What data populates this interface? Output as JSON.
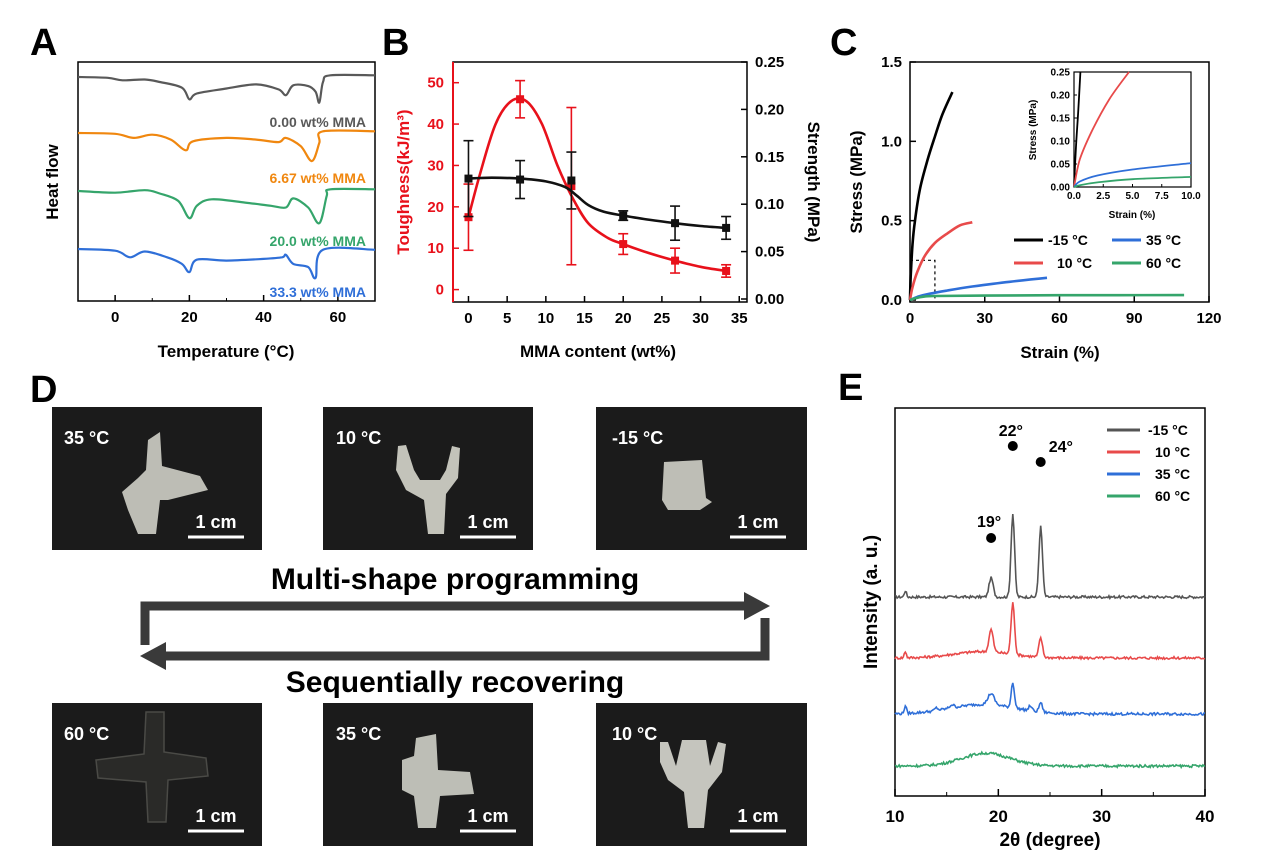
{
  "panel_labels": {
    "a": "A",
    "b": "B",
    "c": "C",
    "d": "D",
    "e": "E"
  },
  "chart_data": [
    {
      "id": "A",
      "type": "line",
      "xlabel": "Temperature (°C)",
      "ylabel": "Heat flow",
      "xlim": [
        -10,
        70
      ],
      "xticks": [
        0,
        20,
        40,
        60
      ],
      "series": [
        {
          "name": "0.00 wt% MMA",
          "color": "#595959",
          "offset": 0,
          "points": [
            [
              -10,
              0.0
            ],
            [
              -2,
              0.5
            ],
            [
              2,
              2.0
            ],
            [
              8,
              1.5
            ],
            [
              12,
              3.0
            ],
            [
              18,
              6.5
            ],
            [
              20,
              13.5
            ],
            [
              22,
              10.0
            ],
            [
              30,
              7.0
            ],
            [
              38,
              4.5
            ],
            [
              44,
              7.5
            ],
            [
              46,
              11.0
            ],
            [
              48,
              5.0
            ],
            [
              52,
              5.5
            ],
            [
              54,
              9.0
            ],
            [
              55,
              15.5
            ],
            [
              56,
              3.0
            ],
            [
              58,
              -1.0
            ],
            [
              70,
              -1.0
            ]
          ]
        },
        {
          "name": "6.67 wt% MMA",
          "color": "#f0870f",
          "offset": 1,
          "points": [
            [
              -10,
              0.0
            ],
            [
              0,
              0.5
            ],
            [
              5,
              3.0
            ],
            [
              10,
              1.0
            ],
            [
              15,
              4.0
            ],
            [
              19,
              10.5
            ],
            [
              21,
              5.0
            ],
            [
              30,
              3.0
            ],
            [
              38,
              4.0
            ],
            [
              44,
              5.5
            ],
            [
              46,
              3.0
            ],
            [
              50,
              8.0
            ],
            [
              53,
              17.0
            ],
            [
              55,
              6.0
            ],
            [
              56,
              -1.0
            ],
            [
              70,
              -1.0
            ]
          ]
        },
        {
          "name": "20.0 wt% MMA",
          "color": "#35a56b",
          "offset": 2,
          "points": [
            [
              -10,
              0.0
            ],
            [
              0,
              1.0
            ],
            [
              8,
              -0.5
            ],
            [
              12,
              1.5
            ],
            [
              17,
              6.0
            ],
            [
              20,
              16.5
            ],
            [
              22,
              9.0
            ],
            [
              26,
              5.0
            ],
            [
              35,
              7.0
            ],
            [
              42,
              9.0
            ],
            [
              46,
              10.0
            ],
            [
              48,
              4.5
            ],
            [
              52,
              10.0
            ],
            [
              55,
              19.5
            ],
            [
              57,
              3.0
            ],
            [
              58,
              -1.0
            ],
            [
              70,
              -1.0
            ]
          ]
        },
        {
          "name": "33.3 wt% MMA",
          "color": "#2f6fd8",
          "offset": 3,
          "points": [
            [
              -10,
              0.0
            ],
            [
              0,
              1.0
            ],
            [
              4,
              5.0
            ],
            [
              8,
              1.5
            ],
            [
              14,
              5.0
            ],
            [
              18,
              9.0
            ],
            [
              20,
              14.0
            ],
            [
              22,
              6.5
            ],
            [
              30,
              7.0
            ],
            [
              40,
              6.0
            ],
            [
              45,
              5.0
            ],
            [
              46,
              3.5
            ],
            [
              48,
              9.0
            ],
            [
              52,
              11.0
            ],
            [
              54,
              17.5
            ],
            [
              56,
              0.5
            ],
            [
              70,
              0.5
            ]
          ]
        }
      ]
    },
    {
      "id": "B",
      "type": "line",
      "xlabel": "MMA content (wt%)",
      "ylabel": "Toughness(kJ/m³)",
      "y2label": "Strength (MPa)",
      "xlim": [
        -2,
        36
      ],
      "ylim": [
        -3,
        55
      ],
      "y2lim": [
        0,
        0.25
      ],
      "xticks": [
        0,
        5,
        10,
        15,
        20,
        25,
        30,
        35
      ],
      "yticks": [
        0,
        10,
        20,
        30,
        40,
        50
      ],
      "y2ticks": [
        0.0,
        0.05,
        0.1,
        0.15,
        0.2,
        0.25
      ],
      "series": [
        {
          "name": "Toughness",
          "axis": "left",
          "color": "#e8111b",
          "x": [
            0,
            6.67,
            13.3,
            20,
            26.7,
            33.3
          ],
          "values": [
            17.5,
            46,
            25,
            11,
            7,
            4.5
          ],
          "err": [
            8,
            4.5,
            19,
            2.5,
            3,
            1.5
          ],
          "fit": [
            [
              0,
              17.5
            ],
            [
              1.5,
              28
            ],
            [
              3.5,
              40
            ],
            [
              5.5,
              45.5
            ],
            [
              7.5,
              45.5
            ],
            [
              9.5,
              40
            ],
            [
              11.5,
              30
            ],
            [
              13.5,
              22
            ],
            [
              15.5,
              16
            ],
            [
              18,
              12.5
            ],
            [
              20,
              11
            ],
            [
              23,
              9
            ],
            [
              26.7,
              7
            ],
            [
              30,
              5.5
            ],
            [
              33.3,
              4.5
            ]
          ]
        },
        {
          "name": "Strength",
          "axis": "right",
          "color": "#111111",
          "x": [
            0,
            6.67,
            13.3,
            20,
            26.7,
            33.3
          ],
          "values": [
            0.127,
            0.126,
            0.125,
            0.088,
            0.08,
            0.075
          ],
          "err": [
            0.04,
            0.02,
            0.03,
            0.005,
            0.018,
            0.012
          ],
          "fit": [
            [
              0,
              0.127
            ],
            [
              3,
              0.128
            ],
            [
              6.67,
              0.127
            ],
            [
              10,
              0.124
            ],
            [
              12.5,
              0.118
            ],
            [
              14,
              0.109
            ],
            [
              15.5,
              0.099
            ],
            [
              17.5,
              0.092
            ],
            [
              20,
              0.088
            ],
            [
              23,
              0.084
            ],
            [
              26.7,
              0.08
            ],
            [
              30,
              0.077
            ],
            [
              33.3,
              0.075
            ]
          ]
        }
      ]
    },
    {
      "id": "C",
      "type": "line",
      "xlabel": "Strain (%)",
      "ylabel": "Stress (MPa)",
      "xlim": [
        0,
        120
      ],
      "ylim": [
        0,
        1.5
      ],
      "xticks": [
        0,
        30,
        60,
        90,
        120
      ],
      "yticks": [
        0.0,
        0.5,
        1.0,
        1.5
      ],
      "legend": "bottom-right",
      "series": [
        {
          "name": "-15 °C",
          "color": "#000000",
          "points": [
            [
              0,
              0
            ],
            [
              0.3,
              0.15
            ],
            [
              1,
              0.35
            ],
            [
              2,
              0.5
            ],
            [
              4,
              0.7
            ],
            [
              7,
              0.88
            ],
            [
              10,
              1.03
            ],
            [
              13,
              1.17
            ],
            [
              17,
              1.31
            ]
          ]
        },
        {
          "name": "10 °C",
          "color": "#e84a4a",
          "points": [
            [
              0,
              0
            ],
            [
              1,
              0.08
            ],
            [
              3,
              0.18
            ],
            [
              6,
              0.28
            ],
            [
              10,
              0.36
            ],
            [
              15,
              0.42
            ],
            [
              20,
              0.47
            ],
            [
              25,
              0.49
            ]
          ]
        },
        {
          "name": "35 °C",
          "color": "#2f6fd8",
          "points": [
            [
              0,
              0
            ],
            [
              3,
              0.02
            ],
            [
              8,
              0.04
            ],
            [
              15,
              0.06
            ],
            [
              25,
              0.085
            ],
            [
              40,
              0.115
            ],
            [
              55,
              0.14
            ]
          ]
        },
        {
          "name": "60 °C",
          "color": "#35a56b",
          "points": [
            [
              0,
              0
            ],
            [
              2,
              0.01
            ],
            [
              5,
              0.02
            ],
            [
              10,
              0.025
            ],
            [
              30,
              0.028
            ],
            [
              60,
              0.03
            ],
            [
              110,
              0.031
            ]
          ]
        }
      ],
      "inset": {
        "xlabel": "Strain (%)",
        "ylabel": "Stress (MPa)",
        "xlim": [
          0,
          10
        ],
        "ylim": [
          0,
          0.25
        ],
        "xticks": [
          0.0,
          2.5,
          5.0,
          7.5,
          10.0
        ],
        "yticks": [
          0.0,
          0.05,
          0.1,
          0.15,
          0.2,
          0.25
        ],
        "series": [
          {
            "name": "-15 °C",
            "color": "#000000",
            "points": [
              [
                0,
                0
              ],
              [
                0.15,
                0.08
              ],
              [
                0.35,
                0.16
              ],
              [
                0.55,
                0.25
              ]
            ]
          },
          {
            "name": "10 °C",
            "color": "#e84a4a",
            "points": [
              [
                0,
                0
              ],
              [
                0.5,
                0.06
              ],
              [
                1.5,
                0.12
              ],
              [
                3,
                0.19
              ],
              [
                4.7,
                0.25
              ]
            ]
          },
          {
            "name": "35 °C",
            "color": "#2f6fd8",
            "points": [
              [
                0,
                0
              ],
              [
                0.5,
                0.012
              ],
              [
                2,
                0.025
              ],
              [
                5,
                0.038
              ],
              [
                10,
                0.052
              ]
            ]
          },
          {
            "name": "60 °C",
            "color": "#35a56b",
            "points": [
              [
                0,
                0
              ],
              [
                0.5,
                0.004
              ],
              [
                2,
                0.01
              ],
              [
                5,
                0.017
              ],
              [
                10,
                0.022
              ]
            ]
          }
        ]
      }
    },
    {
      "id": "E",
      "type": "line",
      "xlabel": "2θ (degree)",
      "ylabel": "Intensity (a. u.)",
      "xlim": [
        10,
        40
      ],
      "xticks": [
        10,
        20,
        30,
        40
      ],
      "legend": "top-right",
      "peak_labels": [
        {
          "text": "19°",
          "x": 19.3
        },
        {
          "text": "22°",
          "x": 21.4
        },
        {
          "text": "24°",
          "x": 24.1
        }
      ],
      "series": [
        {
          "name": "-15 °C",
          "color": "#555555",
          "baseline": 11,
          "peaks": [
            [
              11,
              2,
              0.1
            ],
            [
              19.3,
              6,
              0.2
            ],
            [
              21.4,
              26,
              0.17
            ],
            [
              24.1,
              22,
              0.17
            ]
          ],
          "hump": [
            0,
            18,
            4
          ]
        },
        {
          "name": "10 °C",
          "color": "#e84a4a",
          "baseline": 6.2,
          "peaks": [
            [
              11,
              2,
              0.1
            ],
            [
              19.3,
              7,
              0.2
            ],
            [
              21.4,
              16,
              0.17
            ],
            [
              24.1,
              6,
              0.17
            ]
          ],
          "hump": [
            2,
            18.5,
            4
          ]
        },
        {
          "name": "35 °C",
          "color": "#2f6fd8",
          "baseline": 2,
          "peaks": [
            [
              11,
              2.5,
              0.1
            ],
            [
              14,
              0.8,
              0.15
            ],
            [
              15.5,
              1,
              0.2
            ],
            [
              19.3,
              3.5,
              0.3
            ],
            [
              21.4,
              8,
              0.15
            ],
            [
              23.1,
              1.5,
              0.15
            ],
            [
              24.1,
              3,
              0.15
            ]
          ],
          "hump": [
            3,
            18.5,
            4.5
          ]
        },
        {
          "name": "60 °C",
          "color": "#35a56b",
          "baseline": 1,
          "peaks": [],
          "hump": [
            4,
            18.8,
            3.3
          ]
        }
      ]
    }
  ],
  "panel_d": {
    "photos": [
      {
        "temp": "35 °C",
        "scale": "1 cm"
      },
      {
        "temp": "10 °C",
        "scale": "1 cm"
      },
      {
        "temp": "-15 °C",
        "scale": "1 cm"
      },
      {
        "temp": "60 °C",
        "scale": "1 cm"
      },
      {
        "temp": "35 °C",
        "scale": "1 cm"
      },
      {
        "temp": "10 °C",
        "scale": "1 cm"
      }
    ],
    "forward_label": "Multi-shape programming",
    "reverse_label": "Sequentially recovering"
  }
}
